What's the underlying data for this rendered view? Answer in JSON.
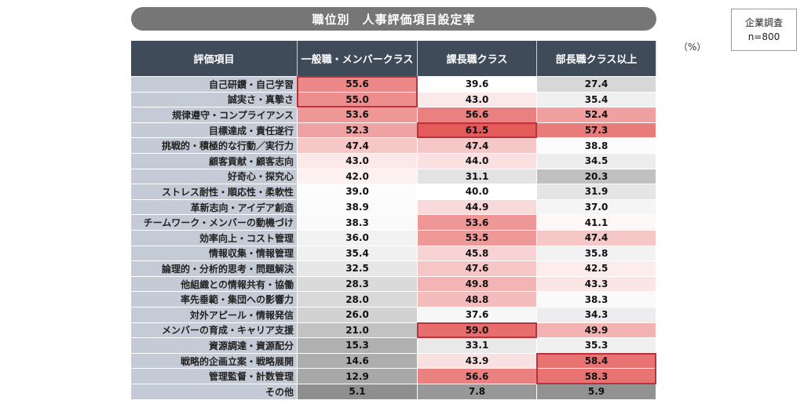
{
  "title": "職位別　人事評価項目設定率",
  "unit": "（%）",
  "survey": {
    "line1": "企業調査",
    "line2": "n=800"
  },
  "chart_data": {
    "type": "table",
    "header_label": "評価項目",
    "columns": [
      "一般職・メンバークラス",
      "課長職クラス",
      "部長職クラス以上"
    ],
    "rows": [
      {
        "item": "自己研鑽・自己学習",
        "values": [
          55.6,
          39.6,
          27.4
        ]
      },
      {
        "item": "誠実さ・真摯さ",
        "values": [
          55.0,
          43.0,
          35.4
        ]
      },
      {
        "item": "規律遵守・コンプライアンス",
        "values": [
          53.6,
          56.6,
          52.4
        ]
      },
      {
        "item": "目標達成・責任遂行",
        "values": [
          52.3,
          61.5,
          57.3
        ]
      },
      {
        "item": "挑戦的・積極的な行動／実行力",
        "values": [
          47.4,
          47.4,
          38.8
        ]
      },
      {
        "item": "顧客貢献・顧客志向",
        "values": [
          43.0,
          44.0,
          34.5
        ]
      },
      {
        "item": "好奇心・探究心",
        "values": [
          42.0,
          31.1,
          20.3
        ]
      },
      {
        "item": "ストレス耐性・順応性・柔軟性",
        "values": [
          39.0,
          40.0,
          31.9
        ]
      },
      {
        "item": "革新志向・アイデア創造",
        "values": [
          38.9,
          44.9,
          37.0
        ]
      },
      {
        "item": "チームワーク・メンバーの動機づけ",
        "values": [
          38.3,
          53.6,
          41.1
        ]
      },
      {
        "item": "効率向上・コスト管理",
        "values": [
          36.0,
          53.5,
          47.4
        ]
      },
      {
        "item": "情報収集・情報管理",
        "values": [
          35.4,
          45.8,
          35.8
        ]
      },
      {
        "item": "論理的・分析的思考・問題解決",
        "values": [
          32.5,
          47.6,
          42.5
        ]
      },
      {
        "item": "他組織との情報共有・協働",
        "values": [
          28.3,
          49.8,
          43.3
        ]
      },
      {
        "item": "率先垂範・集団への影響力",
        "values": [
          28.0,
          48.8,
          38.3
        ]
      },
      {
        "item": "対外アピール・情報発信",
        "values": [
          26.0,
          37.6,
          34.3
        ]
      },
      {
        "item": "メンバーの育成・キャリア支援",
        "values": [
          21.0,
          59.0,
          49.9
        ]
      },
      {
        "item": "資源調達・資源配分",
        "values": [
          15.3,
          33.1,
          35.3
        ]
      },
      {
        "item": "戦略的企画立案・戦略展開",
        "values": [
          14.6,
          43.9,
          58.4
        ]
      },
      {
        "item": "管理監督・計数管理",
        "values": [
          12.9,
          56.6,
          58.3
        ]
      },
      {
        "item": "その他",
        "values": [
          5.1,
          7.8,
          5.9
        ]
      }
    ],
    "highlighted": [
      {
        "column": 0,
        "rows": [
          0,
          1
        ]
      },
      {
        "column": 1,
        "rows": [
          3
        ]
      },
      {
        "column": 1,
        "rows": [
          16
        ]
      },
      {
        "column": 2,
        "rows": [
          18,
          19
        ]
      }
    ],
    "colors": {
      "header_bg": "#404b5a",
      "label_bg": "#c5cbd6",
      "high": "#e55b5b",
      "mid": "#ffffff",
      "low": "#8f8f8f",
      "highlight_border": "#b8333b"
    }
  }
}
